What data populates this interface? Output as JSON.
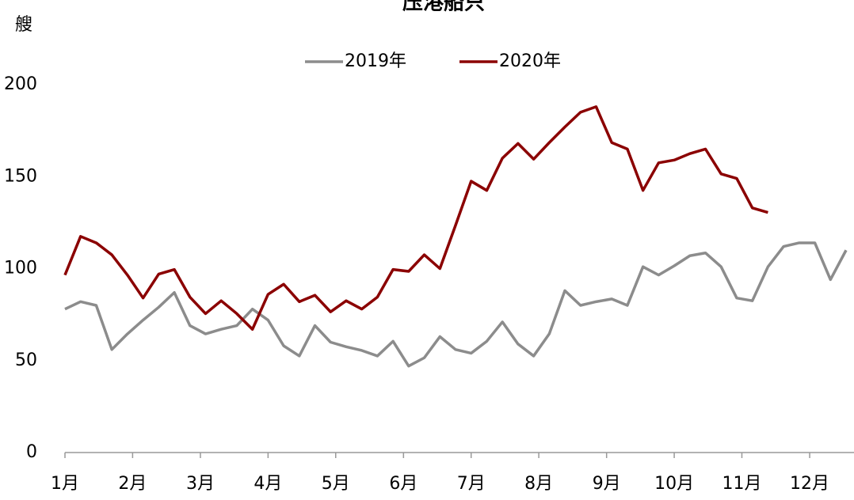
{
  "chart_data": {
    "type": "line",
    "title": "压港船只",
    "ylabel": "艘",
    "x": [
      0,
      1,
      2,
      3,
      4,
      5,
      6,
      7,
      8,
      9,
      10,
      11,
      12,
      13,
      14,
      15,
      16,
      17,
      18,
      19,
      20,
      21,
      22,
      23,
      24,
      25,
      26,
      27,
      28,
      29,
      30,
      31,
      32,
      33,
      34,
      35,
      36,
      37,
      38,
      39,
      40,
      41,
      42,
      43,
      44,
      45,
      46,
      47,
      48,
      49,
      50
    ],
    "series": [
      {
        "name": "2019年",
        "color": "#8c8c8c",
        "values": [
          78,
          82,
          80,
          56,
          64.5,
          72,
          79,
          87,
          69,
          64.5,
          67,
          69,
          78,
          72,
          58,
          52.5,
          69,
          60,
          57.5,
          55.5,
          52.5,
          60.5,
          47,
          51.5,
          63,
          56,
          54,
          60.5,
          71,
          59,
          52.5,
          64.5,
          88,
          80,
          82,
          83.5,
          80,
          101,
          96.5,
          101.5,
          107,
          108.5,
          101,
          84,
          82.5,
          101,
          112,
          114,
          114,
          94,
          110
        ]
      },
      {
        "name": "2020年",
        "color": "#8b0000",
        "values": [
          96.5,
          117.5,
          114,
          107.5,
          96.5,
          84,
          97,
          99.5,
          84.5,
          75.5,
          82.5,
          75.5,
          67,
          86,
          91.5,
          82,
          85.5,
          76.5,
          82.5,
          78,
          84.5,
          99.5,
          98.5,
          107.5,
          100,
          123.5,
          147.5,
          142.5,
          160,
          168,
          159.5,
          168.5,
          177,
          185,
          188,
          168.5,
          165,
          142.5,
          157.5,
          159,
          162.5,
          165,
          151.5,
          149,
          133,
          130.5,
          null,
          null,
          null,
          null,
          null
        ]
      }
    ],
    "xlim": [
      0,
      50.5
    ],
    "xticks": [
      {
        "value": 0,
        "label": "1月"
      },
      {
        "value": 4.33,
        "label": "2月"
      },
      {
        "value": 8.67,
        "label": "3月"
      },
      {
        "value": 13,
        "label": "4月"
      },
      {
        "value": 17.33,
        "label": "5月"
      },
      {
        "value": 21.67,
        "label": "6月"
      },
      {
        "value": 26,
        "label": "7月"
      },
      {
        "value": 30.33,
        "label": "8月"
      },
      {
        "value": 34.67,
        "label": "9月"
      },
      {
        "value": 39,
        "label": "10月"
      },
      {
        "value": 43.33,
        "label": "11月"
      },
      {
        "value": 47.67,
        "label": "12月"
      }
    ],
    "ylim": [
      0,
      200
    ],
    "yticks": [
      0,
      50,
      100,
      150,
      200
    ],
    "grid": false,
    "legend": "top"
  }
}
